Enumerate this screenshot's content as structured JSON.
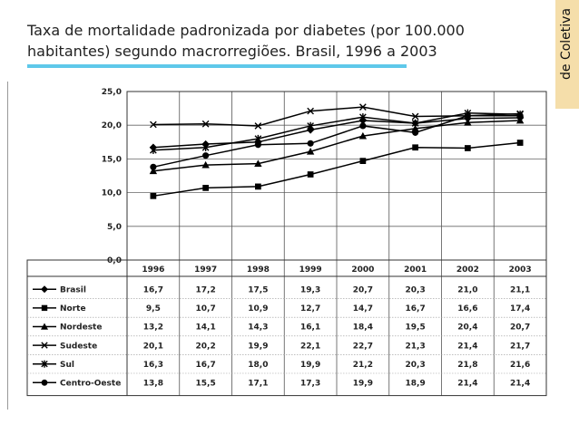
{
  "slide": {
    "title_line1": "Taxa de mortalidade padronizada por diabetes (por 100.000",
    "title_line2": "habitantes) segundo macrorregiões. Brasil, 1996 a 2003",
    "side_tab_label": "de Coletiva",
    "accent_color": "#5ec8ea",
    "side_tab_color": "#f5deaa"
  },
  "chart_data": {
    "type": "line",
    "title": "",
    "xlabel": "",
    "ylabel": "",
    "categories": [
      "1996",
      "1997",
      "1998",
      "1999",
      "2000",
      "2001",
      "2002",
      "2003"
    ],
    "ylim": [
      0,
      25
    ],
    "ytick_labels": [
      "0,0",
      "5,0",
      "10,0",
      "15,0",
      "20,0",
      "25,0"
    ],
    "grid": "horizontal and vertical",
    "legend": "data table below chart",
    "series": [
      {
        "name": "Brasil",
        "marker": "diamond",
        "values": [
          16.7,
          17.2,
          17.5,
          19.3,
          20.7,
          20.3,
          21.0,
          21.1
        ],
        "labels": [
          "16,7",
          "17,2",
          "17,5",
          "19,3",
          "20,7",
          "20,3",
          "21,0",
          "21,1"
        ]
      },
      {
        "name": "Norte",
        "marker": "square",
        "values": [
          9.5,
          10.7,
          10.9,
          12.7,
          14.7,
          16.7,
          16.6,
          17.4
        ],
        "labels": [
          "9,5",
          "10,7",
          "10,9",
          "12,7",
          "14,7",
          "16,7",
          "16,6",
          "17,4"
        ]
      },
      {
        "name": "Nordeste",
        "marker": "triangle",
        "values": [
          13.2,
          14.1,
          14.3,
          16.1,
          18.4,
          19.5,
          20.4,
          20.7
        ],
        "labels": [
          "13,2",
          "14,1",
          "14,3",
          "16,1",
          "18,4",
          "19,5",
          "20,4",
          "20,7"
        ]
      },
      {
        "name": "Sudeste",
        "marker": "x",
        "values": [
          20.1,
          20.2,
          19.9,
          22.1,
          22.7,
          21.3,
          21.4,
          21.7
        ],
        "labels": [
          "20,1",
          "20,2",
          "19,9",
          "22,1",
          "22,7",
          "21,3",
          "21,4",
          "21,7"
        ]
      },
      {
        "name": "Sul",
        "marker": "asterisk",
        "values": [
          16.3,
          16.7,
          18.0,
          19.9,
          21.2,
          20.3,
          21.8,
          21.6
        ],
        "labels": [
          "16,3",
          "16,7",
          "18,0",
          "19,9",
          "21,2",
          "20,3",
          "21,8",
          "21,6"
        ]
      },
      {
        "name": "Centro-Oeste",
        "marker": "circle",
        "values": [
          13.8,
          15.5,
          17.1,
          17.3,
          19.9,
          18.9,
          21.4,
          21.4
        ],
        "labels": [
          "13,8",
          "15,5",
          "17,1",
          "17,3",
          "19,9",
          "18,9",
          "21,4",
          "21,4"
        ]
      }
    ]
  }
}
